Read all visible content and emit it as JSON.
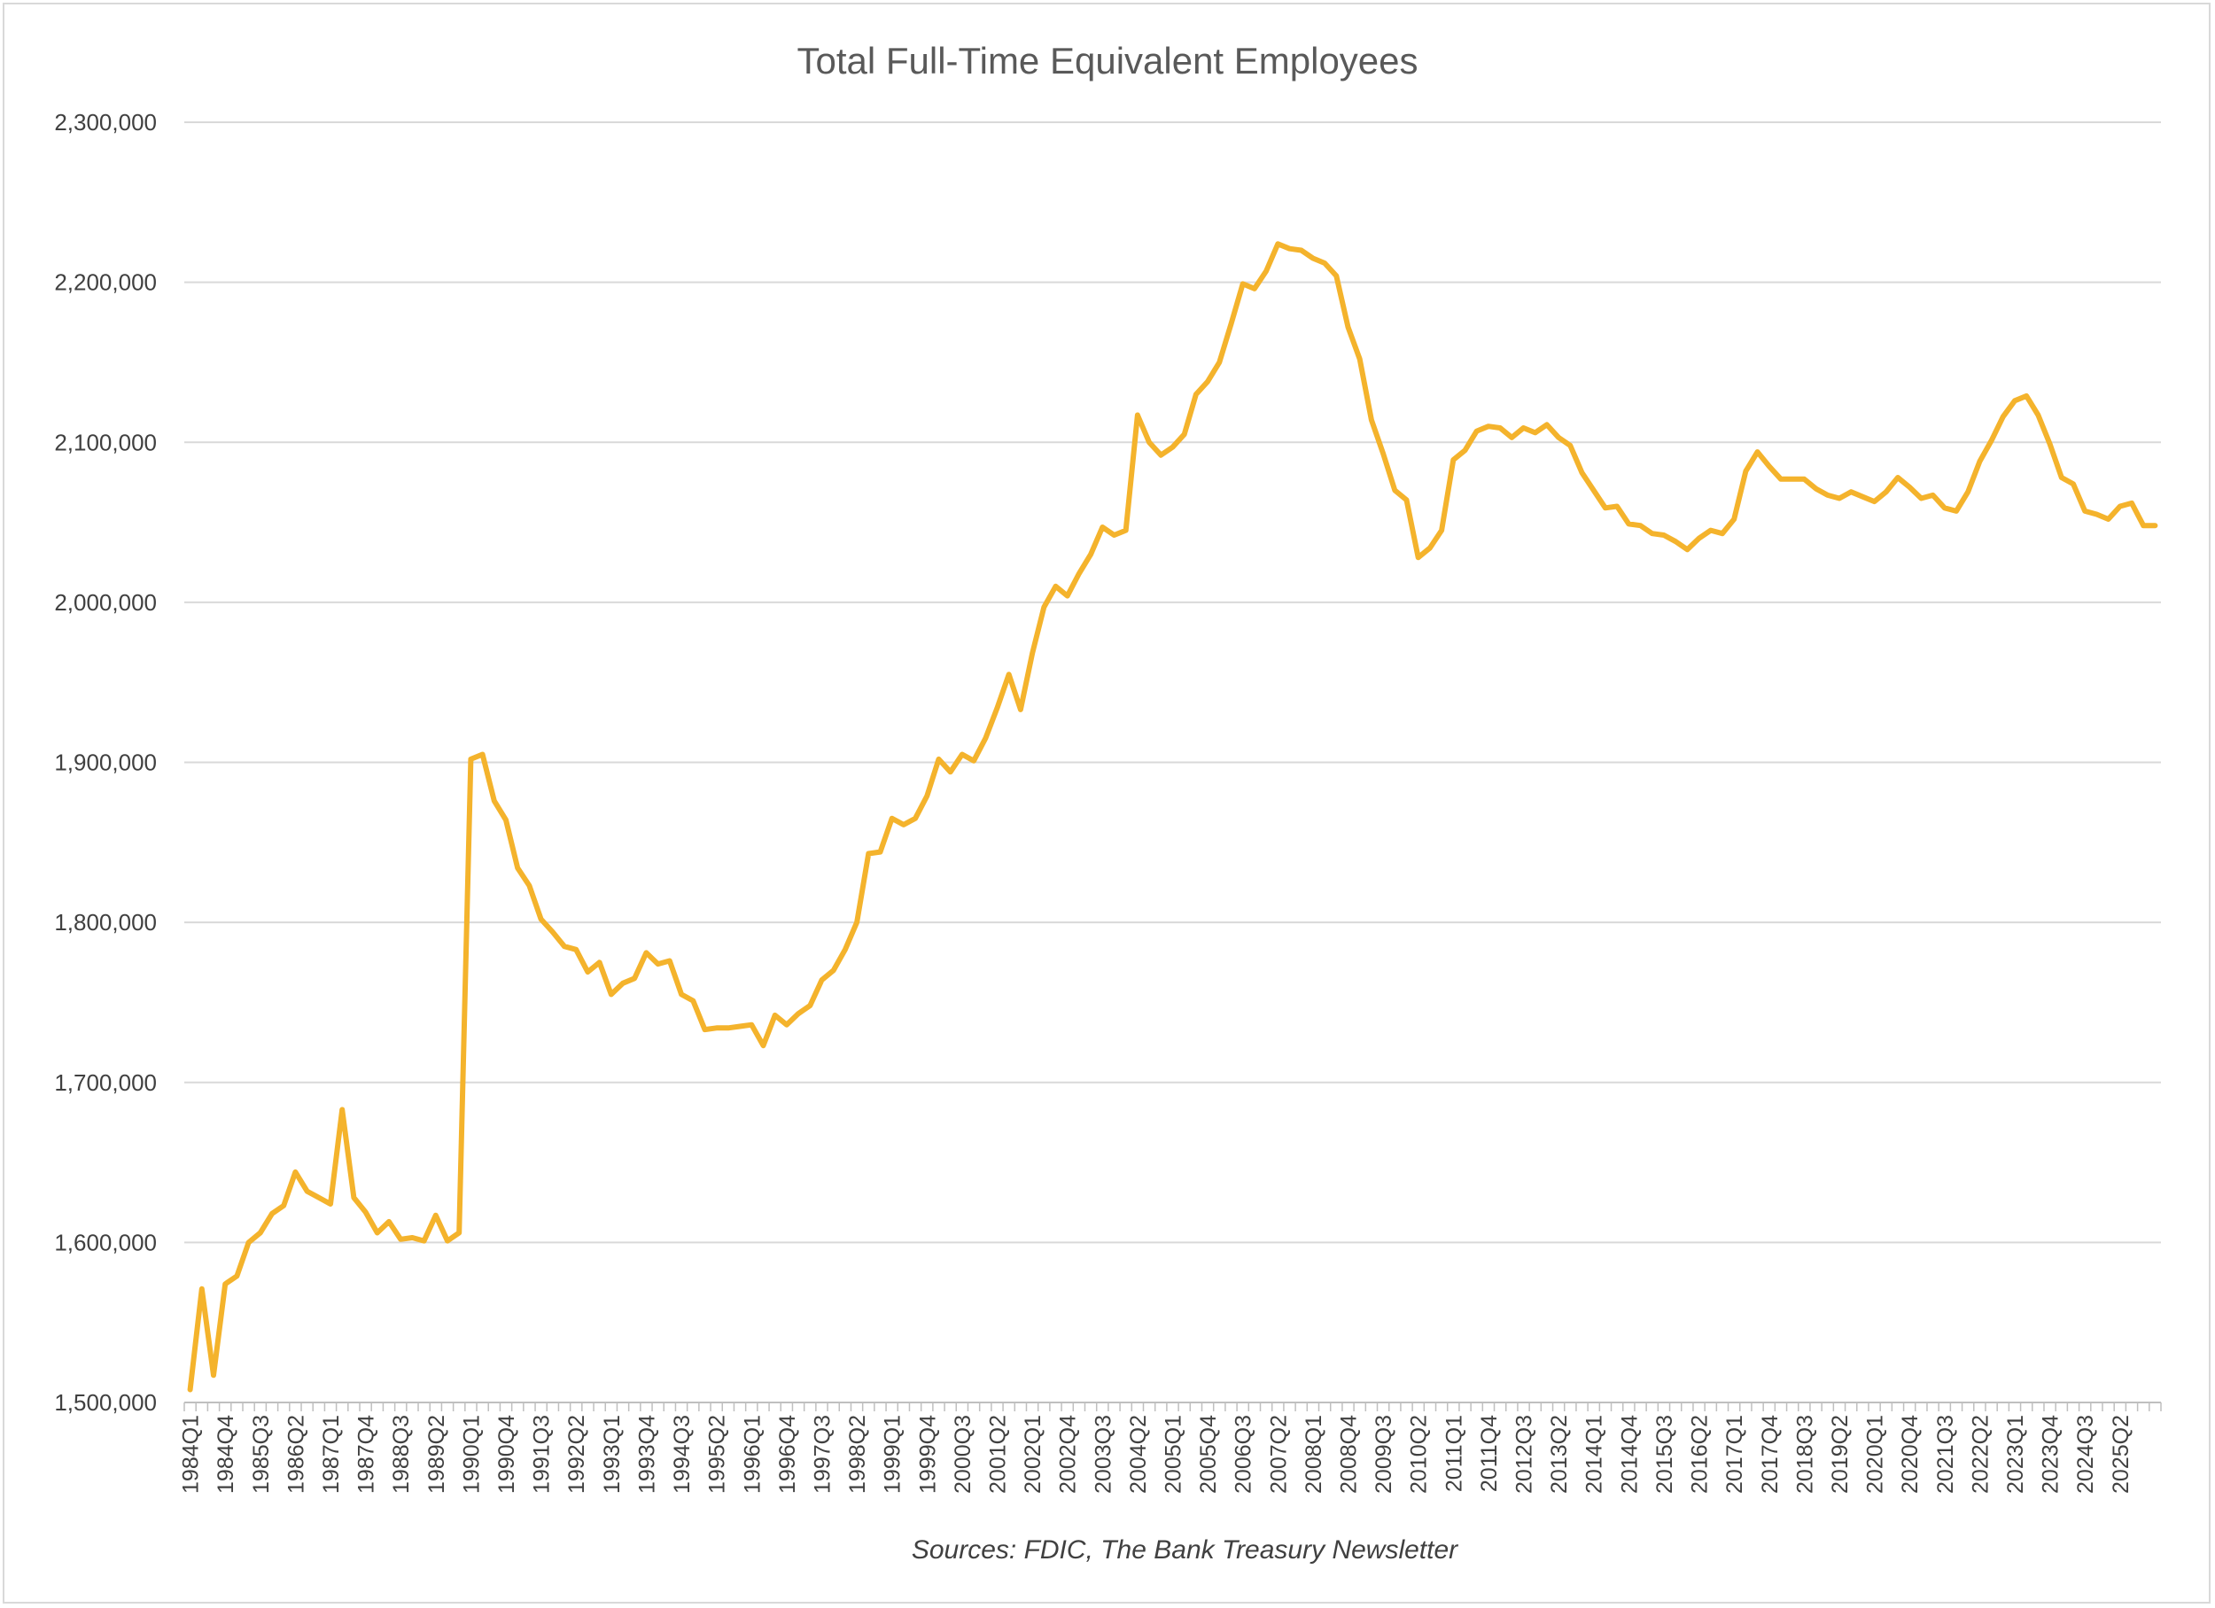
{
  "chart_data": {
    "type": "line",
    "title": "Total Full-Time Equivalent Employees",
    "source": "Sources: FDIC, The Bank Treasury Newsletter",
    "xlabel": "",
    "ylabel": "",
    "ylim": [
      1500000,
      2300000
    ],
    "yticks": [
      1500000,
      1600000,
      1700000,
      1800000,
      1900000,
      2000000,
      2100000,
      2200000,
      2300000
    ],
    "ytick_labels": [
      "1,500,000",
      "1,600,000",
      "1,700,000",
      "1,800,000",
      "1,900,000",
      "2,000,000",
      "2,100,000",
      "2,200,000",
      "2,300,000"
    ],
    "xtick_labels": [
      "1984Q1",
      "1984Q4",
      "1985Q3",
      "1986Q2",
      "1987Q1",
      "1987Q4",
      "1988Q3",
      "1989Q2",
      "1990Q1",
      "1990Q4",
      "1991Q3",
      "1992Q2",
      "1993Q1",
      "1993Q4",
      "1994Q3",
      "1995Q2",
      "1996Q1",
      "1996Q4",
      "1997Q3",
      "1998Q2",
      "1999Q1",
      "1999Q4",
      "2000Q3",
      "2001Q2",
      "2002Q1",
      "2002Q4",
      "2003Q3",
      "2004Q2",
      "2005Q1",
      "2005Q4",
      "2006Q3",
      "2007Q2",
      "2008Q1",
      "2008Q4",
      "2009Q3",
      "2010Q2",
      "2011Q1",
      "2011Q4",
      "2012Q3",
      "2013Q2",
      "2014Q1",
      "2014Q4",
      "2015Q3",
      "2016Q2",
      "2017Q1",
      "2017Q4",
      "2018Q3",
      "2019Q2",
      "2020Q1",
      "2020Q4",
      "2021Q3",
      "2022Q2",
      "2023Q1",
      "2023Q4",
      "2024Q3",
      "2025Q2"
    ],
    "grid": true,
    "line_color": "#F4B32C",
    "series": [
      {
        "x_start": "1984Q1",
        "frequency": "quarterly",
        "values": [
          1508000,
          1571000,
          1517000,
          1574000,
          1579000,
          1600000,
          1606000,
          1618000,
          1623000,
          1644000,
          1632000,
          1628000,
          1624000,
          1683000,
          1628000,
          1619000,
          1606000,
          1613000,
          1602000,
          1603000,
          1601000,
          1617000,
          1601000,
          1606000,
          1902000,
          1905000,
          1876000,
          1864000,
          1834000,
          1823000,
          1802000,
          1794000,
          1785000,
          1783000,
          1769000,
          1775000,
          1755000,
          1762000,
          1765000,
          1781000,
          1774000,
          1776000,
          1755000,
          1751000,
          1733000,
          1734000,
          1734000,
          1735000,
          1736000,
          1723000,
          1742000,
          1736000,
          1743000,
          1748000,
          1764000,
          1770000,
          1783000,
          1800000,
          1843000,
          1844000,
          1865000,
          1861000,
          1865000,
          1879000,
          1902000,
          1894000,
          1905000,
          1901000,
          1915000,
          1934000,
          1955000,
          1933000,
          1968000,
          1997000,
          2010000,
          2004000,
          2018000,
          2030000,
          2047000,
          2042000,
          2045000,
          2117000,
          2100000,
          2092000,
          2097000,
          2105000,
          2130000,
          2138000,
          2150000,
          2174000,
          2199000,
          2196000,
          2207000,
          2224000,
          2221000,
          2220000,
          2215000,
          2212000,
          2204000,
          2172000,
          2152000,
          2114000,
          2093000,
          2070000,
          2064000,
          2028000,
          2034000,
          2045000,
          2089000,
          2095000,
          2107000,
          2110000,
          2109000,
          2103000,
          2109000,
          2106000,
          2111000,
          2103000,
          2098000,
          2081000,
          2070000,
          2059000,
          2060000,
          2049000,
          2048000,
          2043000,
          2042000,
          2038000,
          2033000,
          2040000,
          2045000,
          2043000,
          2052000,
          2082000,
          2094000,
          2085000,
          2077000,
          2077000,
          2077000,
          2071000,
          2067000,
          2065000,
          2069000,
          2066000,
          2063000,
          2069000,
          2078000,
          2072000,
          2065000,
          2067000,
          2059000,
          2057000,
          2069000,
          2088000,
          2101000,
          2116000,
          2126000,
          2129000,
          2117000,
          2099000,
          2078000,
          2074000,
          2057000,
          2055000,
          2052000,
          2060000,
          2062000,
          2048000,
          2048000
        ]
      }
    ]
  }
}
